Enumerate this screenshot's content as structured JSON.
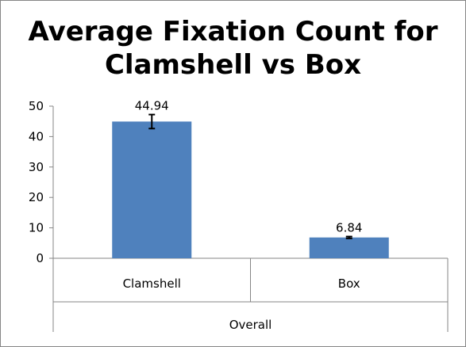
{
  "chart_data": {
    "type": "bar",
    "title_lines": [
      "Average Fixation Count for",
      "Clamshell vs Box"
    ],
    "categories": [
      "Clamshell",
      "Box"
    ],
    "group_label": "Overall",
    "series": [
      {
        "values": [
          44.94,
          6.84
        ],
        "data_labels": [
          "44.94",
          "6.84"
        ],
        "error": [
          2.3,
          0.3
        ],
        "color": "#4F81BD"
      }
    ],
    "ylim": [
      0,
      50
    ],
    "yticks": [
      "0",
      "10",
      "20",
      "30",
      "40",
      "50"
    ],
    "grid": false,
    "legend": "none"
  }
}
